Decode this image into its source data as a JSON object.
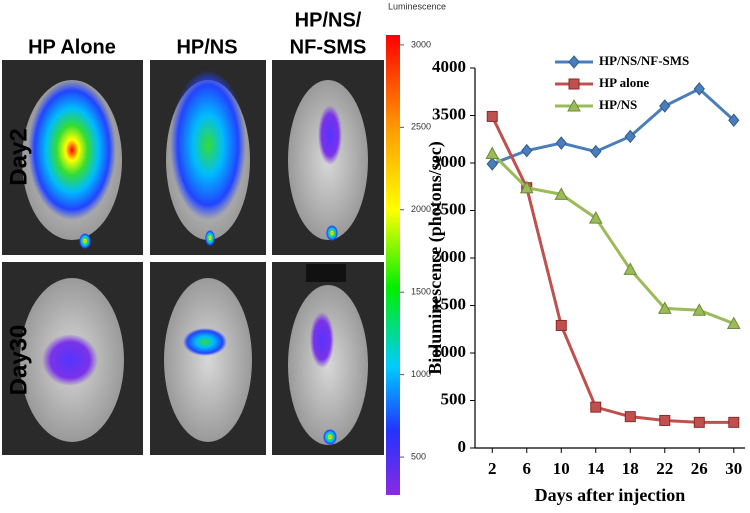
{
  "image_panel": {
    "column_labels": [
      [
        "HP Alone"
      ],
      [
        "HP/NS"
      ],
      [
        "HP/NS/",
        "NF-SMS"
      ]
    ],
    "row_labels": [
      "Day2",
      "Day30"
    ]
  },
  "chart_data": [
    {
      "type": "colorbar",
      "title": "Luminescence",
      "ylim": [
        270,
        3060
      ],
      "yticks": [
        500,
        1000,
        1500,
        2000,
        2500,
        3000
      ]
    },
    {
      "type": "line",
      "x": [
        2,
        6,
        10,
        14,
        18,
        22,
        26,
        30
      ],
      "series": [
        {
          "name": "HP/NS/NF-SMS",
          "color": "#4a7ebb",
          "marker": "diamond",
          "values": [
            2990,
            3130,
            3210,
            3120,
            3280,
            3600,
            3780,
            3450
          ]
        },
        {
          "name": "HP alone",
          "color": "#c0504d",
          "marker": "square",
          "values": [
            3490,
            2740,
            1290,
            430,
            330,
            290,
            270,
            270
          ]
        },
        {
          "name": "HP/NS",
          "color": "#9bbb59",
          "marker": "triangle",
          "values": [
            3100,
            2740,
            2670,
            2420,
            1880,
            1470,
            1450,
            1310
          ]
        }
      ],
      "xlabel": "Days after injection",
      "ylabel": "Bioluminescence (photons/sec)",
      "xlim": [
        0,
        31.3
      ],
      "xticks": [
        2,
        6,
        10,
        14,
        18,
        22,
        26,
        30
      ],
      "ylim": [
        0,
        4000
      ],
      "yticks": [
        0,
        500,
        1000,
        1500,
        2000,
        2500,
        3000,
        3500,
        4000
      ],
      "grid": false,
      "legend": "upper right"
    }
  ]
}
